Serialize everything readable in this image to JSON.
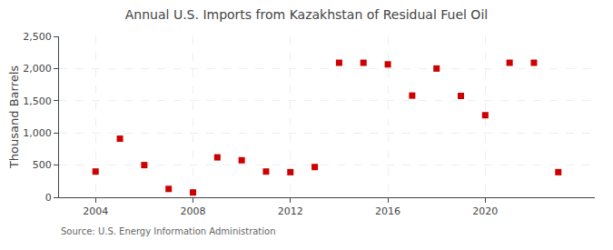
{
  "chart_data": {
    "type": "scatter",
    "title": "Annual U.S. Imports from Kazakhstan of Residual Fuel Oil",
    "ylabel": "Thousand Barrels",
    "annotations": [
      "Source: U.S. Energy Information Administration"
    ],
    "x": [
      2004,
      2005,
      2006,
      2007,
      2008,
      2009,
      2010,
      2011,
      2012,
      2013,
      2014,
      2015,
      2016,
      2017,
      2018,
      2019,
      2020,
      2021,
      2022,
      2023
    ],
    "values": [
      400,
      910,
      500,
      130,
      75,
      620,
      575,
      400,
      390,
      470,
      2090,
      2090,
      2065,
      1580,
      2000,
      1575,
      1275,
      2090,
      2090,
      390
    ],
    "color": "#cc0000",
    "marker": "square",
    "xlim": [
      2002.5,
      2024.5
    ],
    "xticks": [
      2004,
      2008,
      2012,
      2016,
      2020
    ],
    "ylim": [
      0,
      2500
    ],
    "yticks": [
      0,
      500,
      {
        "value": 1000,
        "label": "1,000"
      },
      {
        "value": 1500,
        "label": "1,500"
      },
      {
        "value": 2000,
        "label": "2,000"
      },
      {
        "value": 2500,
        "label": "2,500"
      }
    ],
    "grid": true
  }
}
